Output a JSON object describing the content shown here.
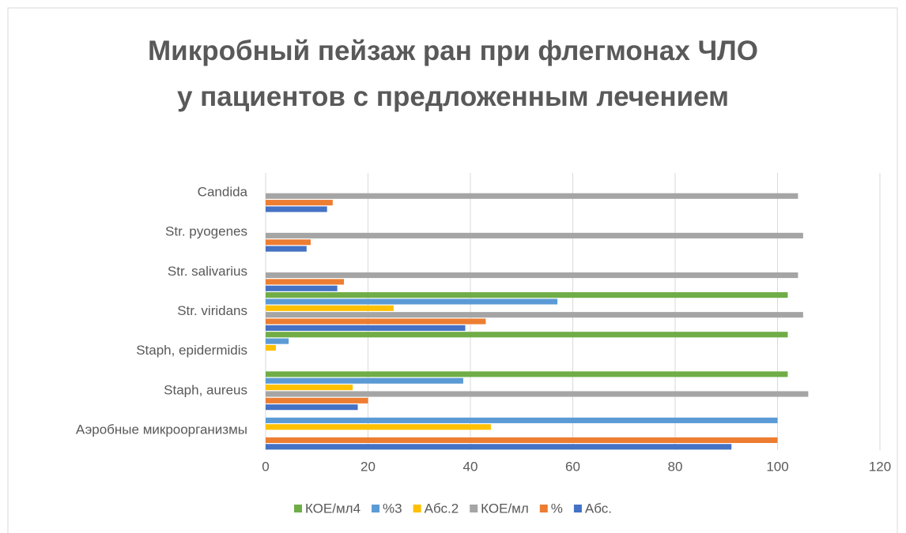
{
  "chart_data": {
    "type": "hbar",
    "title": "Микробный пейзаж ран при флегмонах ЧЛО у пациентов с предложенным лечением",
    "categories": [
      "Аэробные микроорганизмы",
      "Staph, aureus",
      "Staph, epidermidis",
      "Str. viridans",
      "Str. salivarius",
      "Str. pyogenes",
      "Candida"
    ],
    "series": [
      {
        "name": "Абс.",
        "color": "#4472c4",
        "values": [
          91,
          18,
          null,
          39,
          14,
          8,
          12
        ]
      },
      {
        "name": "%",
        "color": "#ed7d31",
        "values": [
          100,
          20,
          null,
          43,
          15.3,
          8.8,
          13.1
        ]
      },
      {
        "name": "КОЕ/мл",
        "color": "#a5a5a5",
        "values": [
          null,
          106,
          null,
          105,
          104,
          105,
          104
        ]
      },
      {
        "name": "Абс.2",
        "color": "#ffc000",
        "values": [
          44,
          17,
          2,
          25,
          null,
          null,
          null
        ]
      },
      {
        "name": "%3",
        "color": "#5b9bd5",
        "values": [
          100,
          38.6,
          4.5,
          57,
          null,
          null,
          null
        ]
      },
      {
        "name": "КОЕ/мл4",
        "color": "#70ad47",
        "values": [
          null,
          102,
          102,
          102,
          null,
          null,
          null
        ]
      }
    ],
    "xlim": [
      0,
      120
    ],
    "xticks": [
      0,
      20,
      40,
      60,
      80,
      100,
      120
    ],
    "grid": true,
    "legend": "bottom"
  }
}
